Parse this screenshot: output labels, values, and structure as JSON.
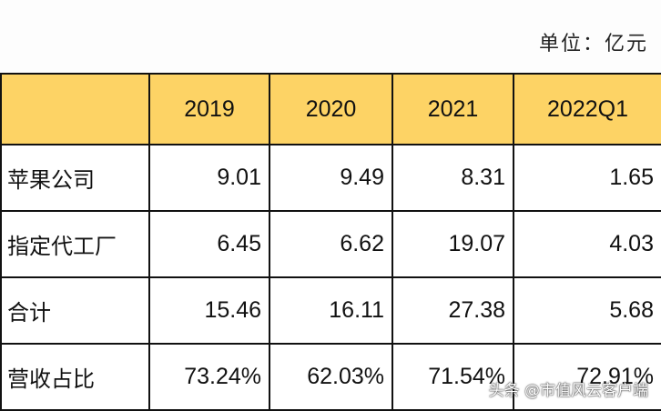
{
  "unit_label": "单位：亿元",
  "table": {
    "headers": [
      "",
      "2019",
      "2020",
      "2021",
      "2022Q1"
    ],
    "rows": [
      {
        "label": "苹果公司",
        "values": [
          "9.01",
          "9.49",
          "8.31",
          "1.65"
        ]
      },
      {
        "label": "指定代工厂",
        "values": [
          "6.45",
          "6.62",
          "19.07",
          "4.03"
        ]
      },
      {
        "label": "合计",
        "values": [
          "15.46",
          "16.11",
          "27.38",
          "5.68"
        ]
      },
      {
        "label": "营收占比",
        "values": [
          "73.24%",
          "62.03%",
          "71.54%",
          "72.91%"
        ]
      }
    ]
  },
  "header_color": "#fdd365",
  "watermark": "头条 @市值风云客户端"
}
